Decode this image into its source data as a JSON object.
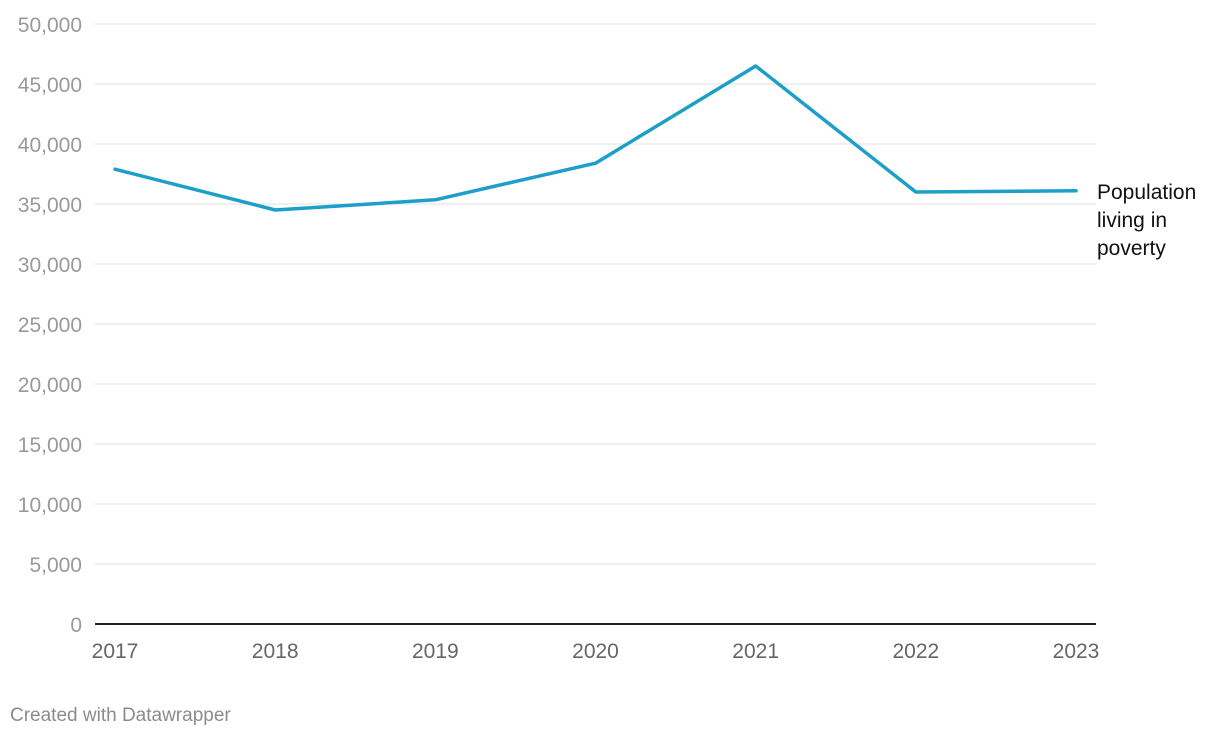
{
  "chart_data": {
    "type": "line",
    "x": [
      "2017",
      "2018",
      "2019",
      "2020",
      "2021",
      "2022",
      "2023"
    ],
    "series": [
      {
        "name": "Population living in poverty",
        "label_lines": [
          "Population",
          "living in",
          "poverty"
        ],
        "values": [
          37900,
          34500,
          35350,
          38400,
          46500,
          36000,
          36100
        ],
        "color": "#1d9fca"
      }
    ],
    "y_ticks": [
      0,
      5000,
      10000,
      15000,
      20000,
      25000,
      30000,
      35000,
      40000,
      45000,
      50000
    ],
    "ylim": [
      0,
      50000
    ],
    "grid": true,
    "legend": "direct-label-right"
  },
  "footer": "Created with Datawrapper"
}
